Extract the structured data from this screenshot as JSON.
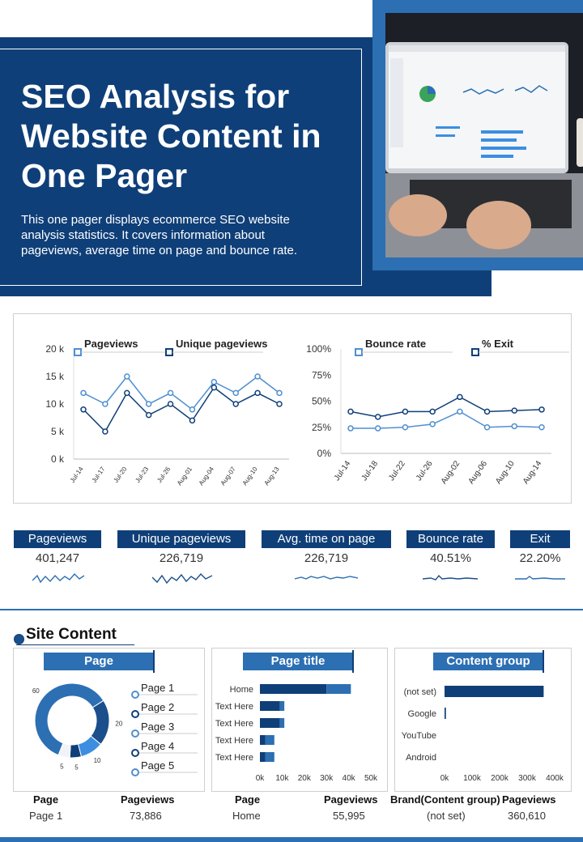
{
  "header": {
    "title": "SEO Analysis for Website Content in One Pager",
    "description": "This one pager displays ecommerce SEO website analysis statistics. It covers information about pageviews, average time on page and bounce rate."
  },
  "colors": {
    "navy": "#0f3f78",
    "blue": "#2c6fb3",
    "light": "#4f8fd0"
  },
  "chart_data": [
    {
      "type": "line",
      "categories": [
        "Jul-14",
        "Jul-17",
        "Jul-20",
        "Jul-23",
        "Jul-26",
        "Aug-01",
        "Aug-04",
        "Aug-07",
        "Aug-10",
        "Aug-13"
      ],
      "series": [
        {
          "name": "Pageviews",
          "values": [
            12,
            10,
            15,
            10,
            12,
            9,
            14,
            12,
            15,
            12
          ]
        },
        {
          "name": "Unique pageviews",
          "values": [
            9,
            5,
            12,
            8,
            10,
            7,
            13,
            10,
            12,
            10
          ]
        }
      ],
      "yticks": [
        "20 k",
        "15 k",
        "10 k",
        "5 k",
        "0 k"
      ],
      "ylim": [
        0,
        20
      ]
    },
    {
      "type": "line",
      "categories": [
        "Jul-14",
        "Jul-18",
        "Jul-22",
        "Jul-26",
        "Aug-02",
        "Aug-06",
        "Aug-10",
        "Aug-14"
      ],
      "series": [
        {
          "name": "Bounce rate",
          "values": [
            24,
            24,
            25,
            28,
            40,
            25,
            26,
            25
          ]
        },
        {
          "name": "% Exit",
          "values": [
            40,
            35,
            40,
            40,
            54,
            40,
            41,
            42
          ]
        }
      ],
      "yticks": [
        "100%",
        "75%",
        "50%",
        "25%",
        "0%"
      ],
      "ylim": [
        0,
        100
      ]
    },
    {
      "type": "pie",
      "labels": [
        "Page 1",
        "Page 2",
        "Page 3",
        "Page 4",
        "Page 5"
      ],
      "values": [
        60,
        20,
        10,
        5,
        5
      ],
      "data_labels": [
        "60",
        "20",
        "10",
        "5",
        "5"
      ]
    },
    {
      "type": "bar",
      "title": "Page title",
      "categories": [
        "Home",
        "Text Here",
        "Text Here",
        "Text Here",
        "Text Here"
      ],
      "series": [
        {
          "values": [
            30,
            9,
            9,
            2.5,
            2.5
          ]
        },
        {
          "values": [
            11,
            2,
            2,
            4,
            4
          ]
        }
      ],
      "xticks": [
        "0k",
        "10k",
        "20k",
        "30k",
        "40k",
        "50k"
      ],
      "xlim": [
        0,
        50
      ]
    },
    {
      "type": "bar",
      "title": "Content group",
      "categories": [
        "(not set)",
        "Google",
        "YouTube",
        "Android"
      ],
      "values": [
        360,
        5,
        0,
        0
      ],
      "xticks": [
        "0k",
        "100k",
        "200k",
        "300k",
        "400k"
      ],
      "xlim": [
        0,
        400
      ]
    }
  ],
  "kpis": [
    {
      "label": "Pageviews",
      "value": "401,247"
    },
    {
      "label": "Unique pageviews",
      "value": "226,719"
    },
    {
      "label": "Avg. time on page",
      "value": "226,719"
    },
    {
      "label": "Bounce rate",
      "value": "40.51%"
    },
    {
      "label": "Exit",
      "value": "22.20%"
    }
  ],
  "site_content": {
    "title": "Site Content",
    "panels": [
      "Page",
      "Page title",
      "Content group"
    ]
  },
  "tables": {
    "page": {
      "h1": "Page",
      "h2": "Pageviews",
      "v1": "Page 1",
      "v2": "73,886"
    },
    "title": {
      "h1": "Page",
      "h2": "Pageviews",
      "v1": "Home",
      "v2": "55,995"
    },
    "group": {
      "h1": "Brand(Content group)",
      "h2": "Pageviews",
      "v1": "(not set)",
      "v2": "360,610"
    }
  }
}
